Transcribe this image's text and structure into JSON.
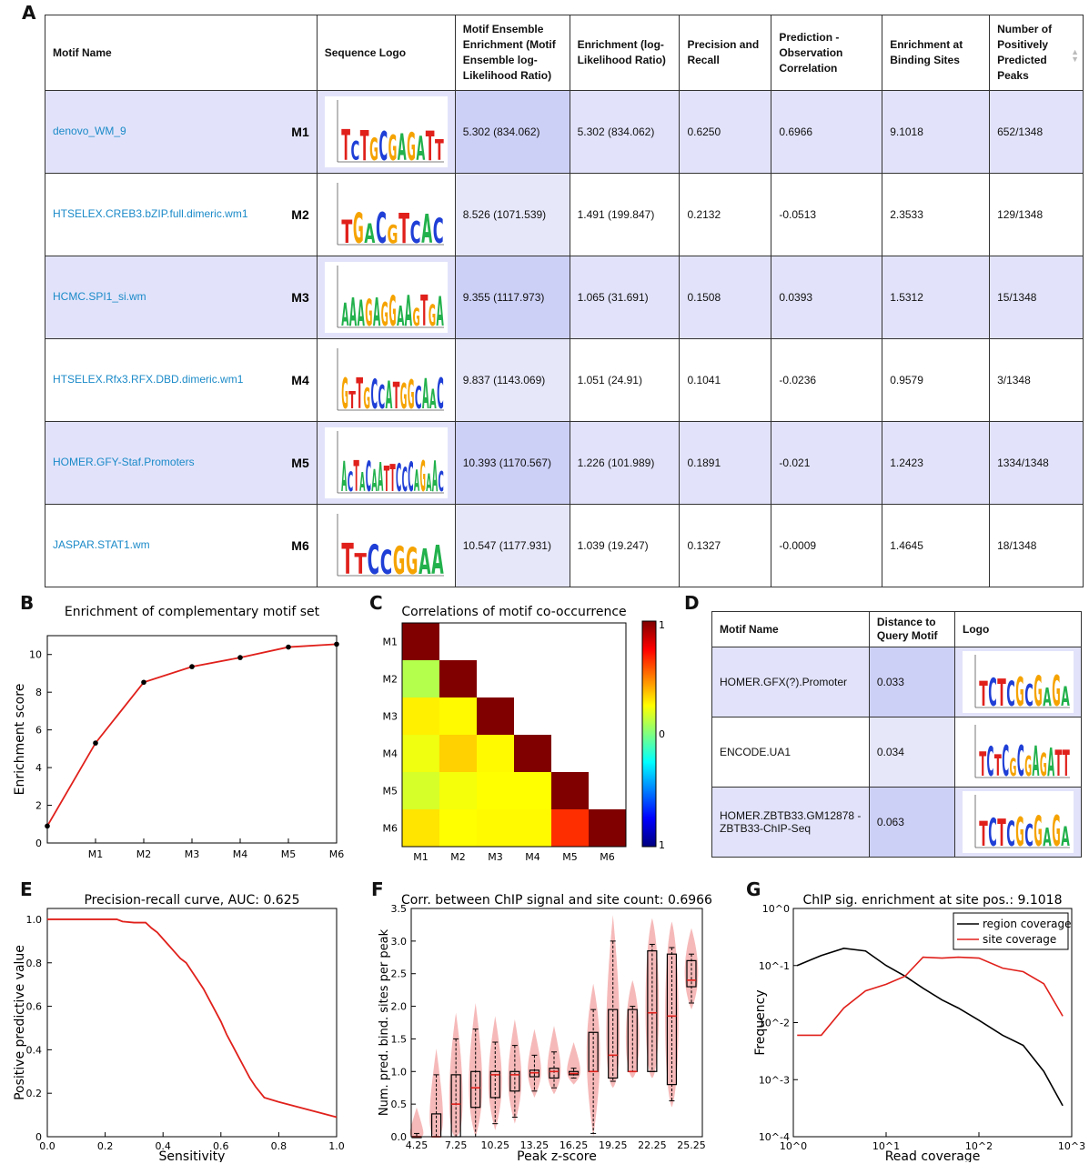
{
  "panels": {
    "A": "A",
    "B": "B",
    "C": "C",
    "D": "D",
    "E": "E",
    "F": "F",
    "G": "G"
  },
  "tableA": {
    "headers": [
      "Motif Name",
      "Sequence Logo",
      "Motif Ensemble Enrichment (Motif Ensemble log-Likelihood Ratio)",
      "Enrichment (log-Likelihood Ratio)",
      "Precision and Recall",
      "Prediction - Observation Correlation",
      "Enrichment at Binding Sites",
      "Number of Positively Predicted Peaks"
    ],
    "rows": [
      {
        "name": "denovo_WM_9",
        "tag": "M1",
        "ensemble": "5.302 (834.062)",
        "enrichment": "5.302 (834.062)",
        "precision": "0.6250",
        "correlation": "0.6966",
        "binding": "9.1018",
        "peaks": "652/1348"
      },
      {
        "name": "HTSELEX.CREB3.bZIP.full.dimeric.wm1",
        "tag": "M2",
        "ensemble": "8.526 (1071.539)",
        "enrichment": "1.491 (199.847)",
        "precision": "0.2132",
        "correlation": "-0.0513",
        "binding": "2.3533",
        "peaks": "129/1348"
      },
      {
        "name": "HCMC.SPI1_si.wm",
        "tag": "M3",
        "ensemble": "9.355 (1117.973)",
        "enrichment": "1.065 (31.691)",
        "precision": "0.1508",
        "correlation": "0.0393",
        "binding": "1.5312",
        "peaks": "15/1348"
      },
      {
        "name": "HTSELEX.Rfx3.RFX.DBD.dimeric.wm1",
        "tag": "M4",
        "ensemble": "9.837 (1143.069)",
        "enrichment": "1.051 (24.91)",
        "precision": "0.1041",
        "correlation": "-0.0236",
        "binding": "0.9579",
        "peaks": "3/1348"
      },
      {
        "name": "HOMER.GFY-Staf.Promoters",
        "tag": "M5",
        "ensemble": "10.393 (1170.567)",
        "enrichment": "1.226 (101.989)",
        "precision": "0.1891",
        "correlation": "-0.021",
        "binding": "1.2423",
        "peaks": "1334/1348"
      },
      {
        "name": "JASPAR.STAT1.wm",
        "tag": "M6",
        "ensemble": "10.547 (1177.931)",
        "enrichment": "1.039 (19.247)",
        "precision": "0.1327",
        "correlation": "-0.0009",
        "binding": "1.4645",
        "peaks": "18/1348"
      }
    ]
  },
  "tableD": {
    "headers": [
      "Motif Name",
      "Distance to Query Motif",
      "Logo"
    ],
    "rows": [
      {
        "name": "HOMER.GFX(?).Promoter",
        "distance": "0.033"
      },
      {
        "name": "ENCODE.UA1",
        "distance": "0.034"
      },
      {
        "name": "HOMER.ZBTB33.GM12878 -ZBTB33-ChIP-Seq",
        "distance": "0.063"
      }
    ]
  },
  "logo_colors": {
    "A": "#22b14c",
    "C": "#1f3fd6",
    "G": "#f5a300",
    "T": "#e0201b"
  },
  "logo_letters": {
    "A": [
      [
        "T",
        "C",
        "T",
        "G",
        "C",
        "G",
        "A",
        "G",
        "A",
        "T",
        "T"
      ],
      [
        "T",
        "G",
        "A",
        "C",
        "G",
        "T",
        "C",
        "A",
        "C"
      ],
      [
        "A",
        "A",
        "A",
        "G",
        "A",
        "G",
        "G",
        "A",
        "A",
        "G",
        "T",
        "G",
        "A"
      ],
      [
        "G",
        "T",
        "T",
        "G",
        "C",
        "C",
        "A",
        "T",
        "G",
        "G",
        "C",
        "A",
        "A",
        "C"
      ],
      [
        "A",
        "C",
        "T",
        "A",
        "C",
        "A",
        "A",
        "T",
        "T",
        "C",
        "C",
        "C",
        "A",
        "G",
        "A",
        "A",
        "C"
      ],
      [
        "T",
        "T",
        "C",
        "C",
        "G",
        "G",
        "A",
        "A"
      ]
    ],
    "D": [
      [
        "T",
        "C",
        "T",
        "C",
        "G",
        "C",
        "G",
        "A",
        "G",
        "A"
      ],
      [
        "T",
        "C",
        "T",
        "C",
        "G",
        "C",
        "G",
        "A",
        "G",
        "A",
        "T",
        "T"
      ],
      [
        "T",
        "C",
        "T",
        "C",
        "G",
        "C",
        "G",
        "A",
        "G",
        "A"
      ]
    ]
  },
  "chart_data": [
    {
      "type": "line",
      "title": "Enrichment of complementary motif set",
      "ylabel": "Enrichment score",
      "xlabel": "",
      "categories": [
        "M1",
        "M2",
        "M3",
        "M4",
        "M5",
        "M6"
      ],
      "x": [
        0,
        1,
        2,
        3,
        4,
        5,
        6
      ],
      "values": [
        0.9,
        5.302,
        8.526,
        9.355,
        9.837,
        10.393,
        10.547
      ],
      "ylim": [
        0,
        11
      ],
      "yticks": [
        0,
        2,
        4,
        6,
        8,
        10
      ],
      "color": "#e0201b"
    },
    {
      "type": "heatmap",
      "title": "Correlations of motif co-occurrence",
      "rows": [
        "M1",
        "M2",
        "M3",
        "M4",
        "M5",
        "M6"
      ],
      "cols": [
        "M1",
        "M2",
        "M3",
        "M4",
        "M5",
        "M6"
      ],
      "values": [
        [
          1,
          null,
          null,
          null,
          null,
          null
        ],
        [
          0.1,
          1,
          null,
          null,
          null,
          null
        ],
        [
          0.28,
          0.26,
          1,
          null,
          null,
          null
        ],
        [
          0.22,
          0.34,
          0.26,
          1,
          null,
          null
        ],
        [
          0.17,
          0.23,
          0.25,
          0.25,
          1,
          null
        ],
        [
          0.3,
          0.25,
          0.26,
          0.26,
          0.66,
          1
        ]
      ],
      "colorbar_ticks": [
        "1",
        "0",
        "1"
      ],
      "zlim": [
        -1,
        1
      ]
    },
    {
      "type": "line",
      "title": "Precision-recall curve, AUC: 0.625",
      "xlabel": "Sensitivity",
      "ylabel": "Positive predictive value",
      "xlim": [
        0,
        1
      ],
      "ylim": [
        0,
        1.05
      ],
      "xticks": [
        "0.0",
        "0.2",
        "0.4",
        "0.6",
        "0.8",
        "1.0"
      ],
      "yticks": [
        "0",
        "0.2",
        "0.4",
        "0.6",
        "0.8",
        "1.0"
      ],
      "x": [
        0,
        0.24,
        0.26,
        0.3,
        0.34,
        0.36,
        0.38,
        0.4,
        0.42,
        0.44,
        0.46,
        0.48,
        0.5,
        0.52,
        0.54,
        0.56,
        0.58,
        0.6,
        0.62,
        0.64,
        0.66,
        0.68,
        0.7,
        0.72,
        0.75,
        0.8,
        0.9,
        1.0
      ],
      "y": [
        1.0,
        1.0,
        0.99,
        0.985,
        0.985,
        0.96,
        0.94,
        0.91,
        0.88,
        0.85,
        0.82,
        0.8,
        0.76,
        0.72,
        0.68,
        0.63,
        0.58,
        0.53,
        0.47,
        0.42,
        0.37,
        0.32,
        0.27,
        0.23,
        0.18,
        0.16,
        0.125,
        0.09
      ],
      "color": "#e0201b"
    },
    {
      "type": "box",
      "title": "Corr. between ChIP signal and site count: 0.6966",
      "xlabel": "Peak z-score",
      "ylabel": "Num. pred. bind. sites per peak",
      "xticks": [
        "4.25",
        "7.25",
        "10.25",
        "13.25",
        "16.25",
        "19.25",
        "22.25",
        "25.25"
      ],
      "ylim": [
        0,
        3.5
      ],
      "yticks": [
        "0.0",
        "0.5",
        "1.0",
        "1.5",
        "2.0",
        "2.5",
        "3.0",
        "3.5"
      ],
      "boxes": [
        {
          "pos": 4.25,
          "q1": 0,
          "med": 0,
          "q3": 0,
          "lo": 0,
          "hi": 0.05
        },
        {
          "pos": 5.25,
          "q1": 0,
          "med": 0,
          "q3": 0.35,
          "lo": 0,
          "hi": 0.95
        },
        {
          "pos": 6.25,
          "q1": 0,
          "med": 0.5,
          "q3": 0.95,
          "lo": 0,
          "hi": 1.5
        },
        {
          "pos": 7.25,
          "q1": 0.45,
          "med": 0.75,
          "q3": 1.0,
          "lo": 0,
          "hi": 1.65
        },
        {
          "pos": 8.25,
          "q1": 0.6,
          "med": 0.95,
          "q3": 1.0,
          "lo": 0.2,
          "hi": 1.45
        },
        {
          "pos": 9.25,
          "q1": 0.7,
          "med": 0.95,
          "q3": 1.0,
          "lo": 0.3,
          "hi": 1.4
        },
        {
          "pos": 10.25,
          "q1": 0.92,
          "med": 0.98,
          "q3": 1.02,
          "lo": 0.7,
          "hi": 1.25
        },
        {
          "pos": 11.25,
          "q1": 0.9,
          "med": 1.0,
          "q3": 1.05,
          "lo": 0.75,
          "hi": 1.3
        },
        {
          "pos": 12.25,
          "q1": 0.95,
          "med": 0.97,
          "q3": 1.0,
          "lo": 0.9,
          "hi": 1.05
        },
        {
          "pos": 13.25,
          "q1": 1.0,
          "med": 1.0,
          "q3": 1.6,
          "lo": 0.05,
          "hi": 1.95
        },
        {
          "pos": 14.25,
          "q1": 0.9,
          "med": 1.25,
          "q3": 1.95,
          "lo": 0.85,
          "hi": 3.0
        },
        {
          "pos": 15.25,
          "q1": 1.0,
          "med": 1.0,
          "q3": 1.95,
          "lo": 1.0,
          "hi": 2.0
        },
        {
          "pos": 16.25,
          "q1": 1.0,
          "med": 1.9,
          "q3": 2.85,
          "lo": 1.0,
          "hi": 2.95
        },
        {
          "pos": 17.25,
          "q1": 0.8,
          "med": 1.85,
          "q3": 2.8,
          "lo": 0.55,
          "hi": 2.9
        },
        {
          "pos": 18.25,
          "q1": 2.3,
          "med": 2.4,
          "q3": 2.7,
          "lo": 2.05,
          "hi": 2.8
        }
      ],
      "fill_color": "#f6b9b9",
      "median_color": "#e0201b"
    },
    {
      "type": "line",
      "title": "ChIP sig. enrichment at site pos.: 9.1018",
      "xlabel": "Read coverage",
      "ylabel": "Frequency",
      "xscale": "log",
      "yscale": "log",
      "xlim": [
        1,
        1000
      ],
      "ylim": [
        0.0001,
        1
      ],
      "legend": "top-right",
      "series": [
        {
          "name": "region coverage",
          "color": "#000000",
          "x": [
            1.1,
            2,
            3.5,
            6,
            10,
            16,
            25,
            40,
            60,
            100,
            180,
            300,
            500,
            800
          ],
          "y": [
            0.1,
            0.15,
            0.2,
            0.18,
            0.1,
            0.065,
            0.04,
            0.025,
            0.018,
            0.011,
            0.006,
            0.004,
            0.0014,
            0.00035
          ]
        },
        {
          "name": "site coverage",
          "color": "#e0201b",
          "x": [
            1.1,
            2,
            3.5,
            6,
            10,
            16,
            25,
            40,
            60,
            100,
            180,
            300,
            500,
            800
          ],
          "y": [
            0.006,
            0.006,
            0.018,
            0.036,
            0.047,
            0.065,
            0.14,
            0.135,
            0.14,
            0.135,
            0.09,
            0.078,
            0.048,
            0.013
          ]
        }
      ],
      "xticks": [
        "10^0",
        "10^1",
        "10^2",
        "10^3"
      ],
      "yticks": [
        "10^-4",
        "10^-3",
        "10^-2",
        "10^-1",
        "10^0"
      ]
    }
  ]
}
